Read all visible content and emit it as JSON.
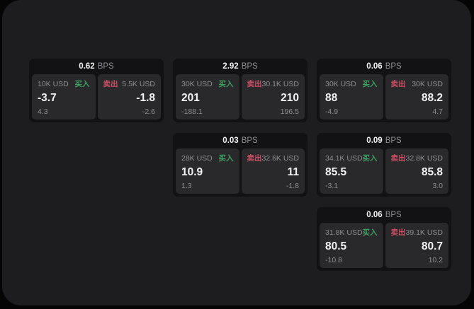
{
  "labels": {
    "bps_unit": "BPS",
    "buy": "买入",
    "sell": "卖出"
  },
  "colors": {
    "page_bg": "#050505",
    "panel_bg": "#1d1d1f",
    "card_bg": "#121214",
    "tile_bg": "#29292b",
    "text_white": "#f2f2f3",
    "text_muted": "#8e8e93",
    "buy": "#3f9e62",
    "sell": "#cc4f63"
  },
  "cards": [
    {
      "bps": "0.62",
      "buy": {
        "notional": "10K USD",
        "price": "-3.7",
        "delta": "4.3"
      },
      "sell": {
        "notional": "5.5K USD",
        "price": "-1.8",
        "delta": "-2.6"
      }
    },
    {
      "bps": "2.92",
      "buy": {
        "notional": "30K USD",
        "price": "201",
        "delta": "-188.1"
      },
      "sell": {
        "notional": "30.1K USD",
        "price": "210",
        "delta": "196.5"
      }
    },
    {
      "bps": "0.06",
      "buy": {
        "notional": "30K USD",
        "price": "88",
        "delta": "-4.9"
      },
      "sell": {
        "notional": "30K USD",
        "price": "88.2",
        "delta": "4.7"
      }
    },
    {
      "bps": "0.03",
      "buy": {
        "notional": "28K USD",
        "price": "10.9",
        "delta": "1.3"
      },
      "sell": {
        "notional": "32.6K USD",
        "price": "11",
        "delta": "-1.8"
      }
    },
    {
      "bps": "0.09",
      "buy": {
        "notional": "34.1K USD",
        "price": "85.5",
        "delta": "-3.1"
      },
      "sell": {
        "notional": "32.8K USD",
        "price": "85.8",
        "delta": "3.0"
      }
    },
    {
      "bps": "0.06",
      "buy": {
        "notional": "31.8K USD",
        "price": "80.5",
        "delta": "-10.8"
      },
      "sell": {
        "notional": "39.1K USD",
        "price": "80.7",
        "delta": "10.2"
      }
    }
  ]
}
